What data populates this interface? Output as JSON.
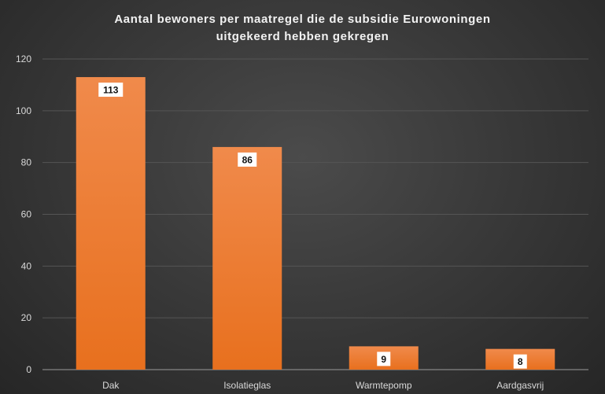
{
  "chart_data": {
    "type": "bar",
    "title_lines": [
      "Aantal bewoners per maatregel die de subsidie Eurowoningen",
      "uitgekeerd hebben gekregen"
    ],
    "categories": [
      "Dak",
      "Isolatieglas",
      "Warmtepomp",
      "Aardgasvrij"
    ],
    "values": [
      113,
      86,
      9,
      8
    ],
    "ylim": [
      0,
      120
    ],
    "yticks": [
      0,
      20,
      40,
      60,
      80,
      100,
      120
    ],
    "grid": true,
    "data_labels": true,
    "xlabel": "",
    "ylabel": "",
    "colors": {
      "bar_top": "#f08a4b",
      "bar_bottom": "#e8701e",
      "grid": "#555555",
      "axis": "#9a9a9a",
      "label_box": "#ffffff"
    }
  }
}
